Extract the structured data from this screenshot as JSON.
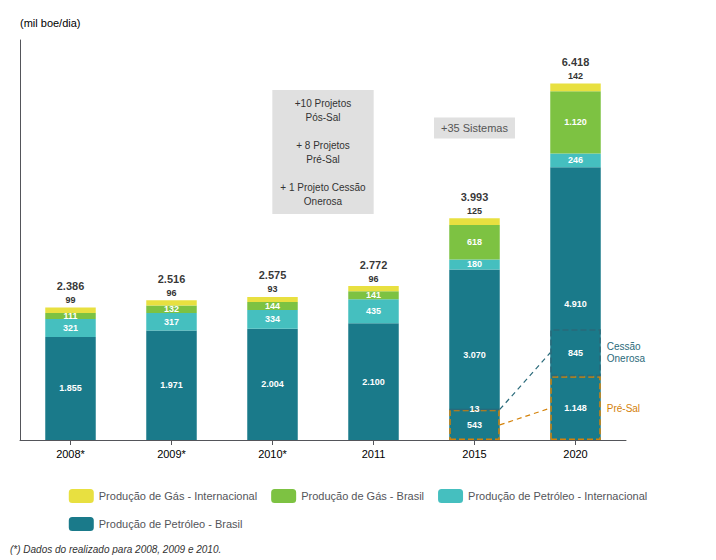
{
  "chart_data": {
    "type": "bar",
    "stacked": true,
    "categories": [
      "2008*",
      "2009*",
      "2010*",
      "2011",
      "2015",
      "2020"
    ],
    "series": [
      {
        "name": "Produção de Petróleo - Brasil",
        "color": "#1a7a8a",
        "values": [
          1855,
          1971,
          2004,
          2100,
          3070,
          4910
        ],
        "value_labels": [
          "1.855",
          "1.971",
          "2.004",
          "2.100",
          "3.070",
          "4.910"
        ]
      },
      {
        "name": "Produção de Petróleo - Internacional",
        "color": "#45bfbf",
        "values": [
          321,
          317,
          334,
          435,
          180,
          246
        ],
        "value_labels": [
          "321",
          "317",
          "334",
          "435",
          "180",
          "246"
        ]
      },
      {
        "name": "Produção de Gás - Brasil",
        "color": "#7dc242",
        "values": [
          111,
          132,
          144,
          141,
          618,
          1120
        ],
        "value_labels": [
          "111",
          "132",
          "144",
          "141",
          "618",
          "1.120"
        ]
      },
      {
        "name": "Produção de Gás - Internacional",
        "color": "#e8e040",
        "values": [
          99,
          96,
          93,
          96,
          125,
          142
        ],
        "value_labels": [
          "99",
          "96",
          "93",
          "96",
          "125",
          "142"
        ]
      }
    ],
    "dashed_regions": [
      {
        "label": "Pré-Sal",
        "color": "#d4820a",
        "categories": [
          "2015",
          "2020"
        ],
        "values": [
          543,
          1148
        ],
        "value_labels": [
          "543",
          "1.148"
        ]
      },
      {
        "label": "Cessão\nOnerosa",
        "color": "#2a6a7a",
        "categories": [
          "2015",
          "2020"
        ],
        "values": [
          13,
          845
        ],
        "value_labels": [
          "13",
          "845"
        ]
      }
    ],
    "totals": {
      "values": [
        2386,
        2516,
        2575,
        2772,
        3993,
        6418
      ],
      "value_labels": [
        "2.386",
        "2.516",
        "2.575",
        "2.772",
        "3.993",
        "6.418"
      ]
    },
    "annotations": [
      "+10 Projetos\nPós-Sal\n\n+ 8 Projetos\nPré-Sal\n\n+ 1 Projeto Cessão\nOnerosa",
      "+35 Sistemas"
    ],
    "note": "(*) Dados do realizado para 2008, 2009 e 2010.",
    "ylabel": "(mil boe/dia)",
    "ylim": [
      0,
      7200
    ],
    "tick_labels": "x",
    "grid": false,
    "data_labels": true,
    "legend": "bottom"
  }
}
